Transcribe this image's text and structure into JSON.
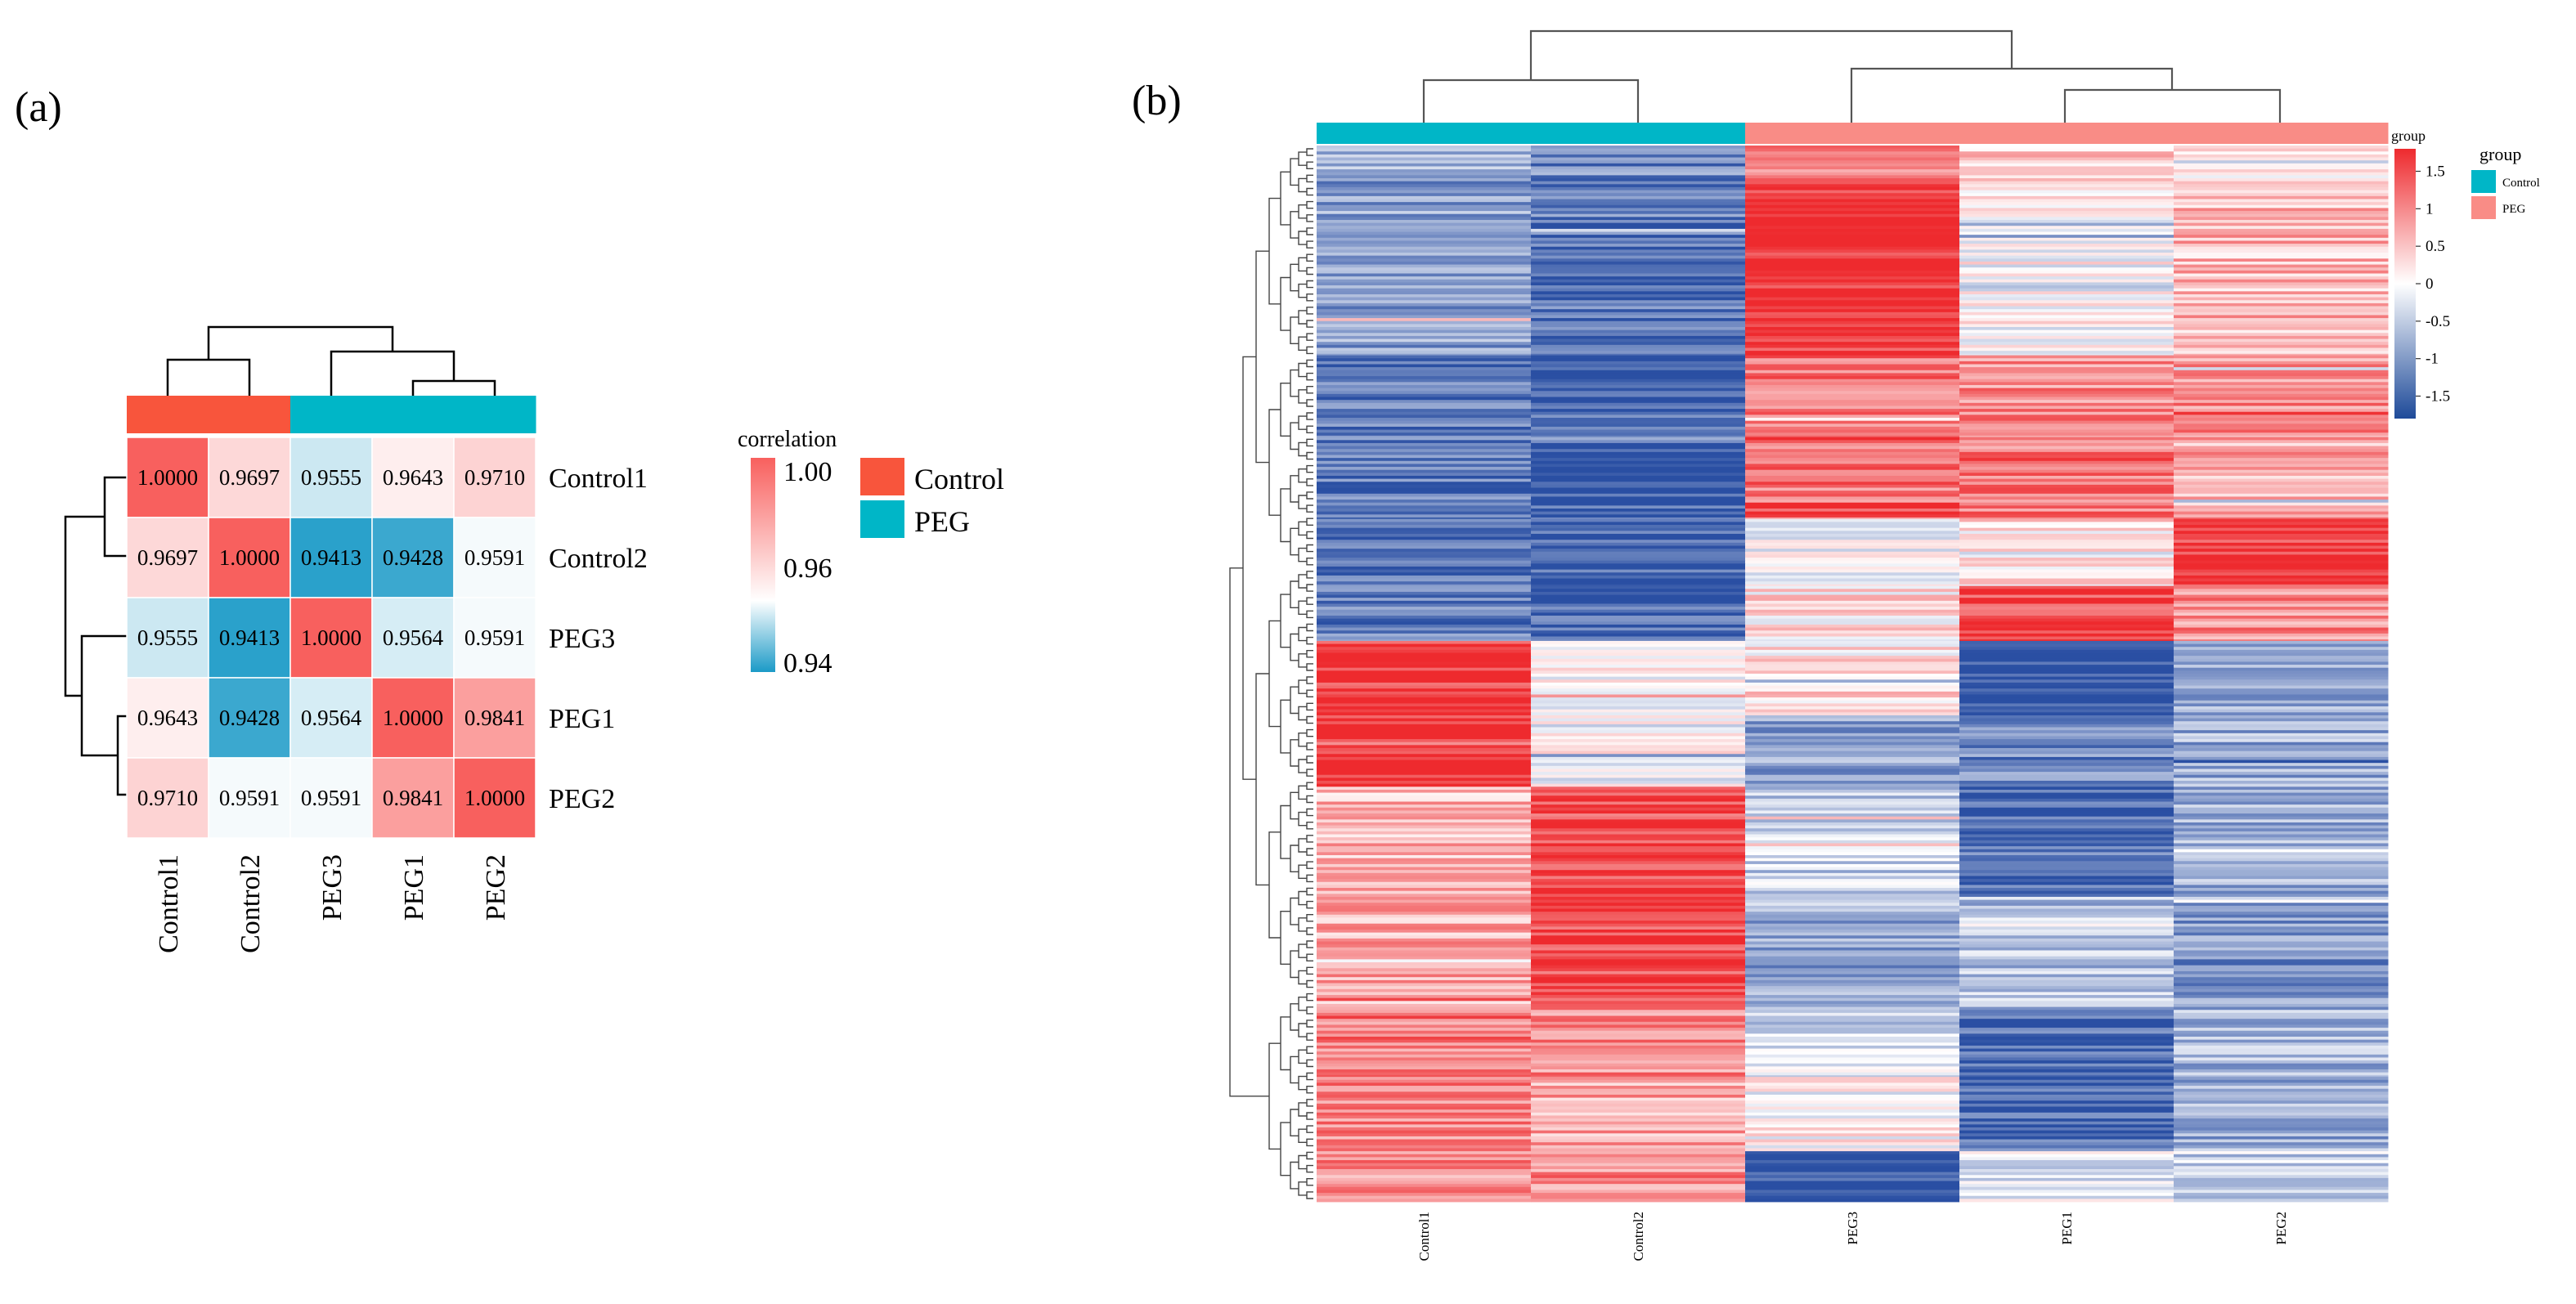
{
  "panel_a": {
    "label": "(a)",
    "legend_title": "correlation",
    "colorbar_ticks": [
      "1.00",
      "0.96",
      "0.94"
    ],
    "groups": [
      {
        "name": "Control",
        "color": "#f8553c"
      },
      {
        "name": "PEG",
        "color": "#00b6c7"
      }
    ]
  },
  "panel_b": {
    "label": "(b)",
    "colorbar_title": "group",
    "colorbar_ticks": [
      "1.5",
      "1",
      "0.5",
      "0",
      "-0.5",
      "-1",
      "-1.5"
    ],
    "legend_title": "group",
    "groups": [
      {
        "name": "Control",
        "color": "#00b6c7"
      },
      {
        "name": "PEG",
        "color": "#f98c86"
      }
    ]
  },
  "chart_data": [
    {
      "type": "heatmap",
      "title": "",
      "samples": [
        "Control1",
        "Control2",
        "PEG3",
        "PEG1",
        "PEG2"
      ],
      "sample_groups": [
        "Control",
        "Control",
        "PEG",
        "PEG",
        "PEG"
      ],
      "values": [
        [
          "1.0000",
          "0.9697",
          "0.9555",
          "0.9643",
          "0.9710"
        ],
        [
          "0.9697",
          "1.0000",
          "0.9413",
          "0.9428",
          "0.9591"
        ],
        [
          "0.9555",
          "0.9413",
          "1.0000",
          "0.9564",
          "0.9591"
        ],
        [
          "0.9643",
          "0.9428",
          "0.9564",
          "1.0000",
          "0.9841"
        ],
        [
          "0.9710",
          "0.9591",
          "0.9591",
          "0.9841",
          "1.0000"
        ]
      ],
      "color_range": [
        0.94,
        1.0
      ],
      "colors": {
        "low": "#1b9ac7",
        "mid": "#ffffff",
        "high": "#f8605e"
      }
    },
    {
      "type": "heatmap",
      "samples": [
        "Control1",
        "Control2",
        "PEG3",
        "PEG1",
        "PEG2"
      ],
      "sample_groups": [
        "Control",
        "Control",
        "PEG",
        "PEG",
        "PEG"
      ],
      "color_range": [
        -1.5,
        1.5
      ],
      "colors": {
        "low": "#2a4fa3",
        "mid": "#ffffff",
        "high": "#ee2a2e"
      },
      "row_blocks": [
        {
          "rows": 26,
          "values": [
            -0.6,
            -1.0,
            1.0,
            0.3,
            0.1
          ]
        },
        {
          "rows": 115,
          "values": [
            -0.8,
            -1.2,
            1.5,
            0.0,
            0.5
          ]
        },
        {
          "rows": 55,
          "values": [
            -1.1,
            -1.3,
            1.0,
            0.8,
            0.8
          ]
        },
        {
          "rows": 55,
          "values": [
            -1.1,
            -1.3,
            1.0,
            0.9,
            0.6
          ]
        },
        {
          "rows": 45,
          "values": [
            -1.1,
            -1.3,
            0.0,
            0.2,
            1.4
          ]
        },
        {
          "rows": 37,
          "values": [
            -1.1,
            -1.3,
            0.2,
            1.3,
            0.8
          ]
        },
        {
          "rows": 50,
          "values": [
            1.4,
            0.1,
            0.2,
            -1.5,
            -0.7
          ]
        },
        {
          "rows": 48,
          "values": [
            1.5,
            0.0,
            -0.8,
            -1.0,
            -0.7
          ]
        },
        {
          "rows": 80,
          "values": [
            0.5,
            1.3,
            -0.4,
            -1.2,
            -0.7
          ]
        },
        {
          "rows": 70,
          "values": [
            0.6,
            1.3,
            -0.8,
            -0.5,
            -0.9
          ]
        },
        {
          "rows": 45,
          "values": [
            0.9,
            0.8,
            -0.3,
            -1.3,
            -0.6
          ]
        },
        {
          "rows": 50,
          "values": [
            0.8,
            0.6,
            0.0,
            -1.3,
            -0.7
          ]
        },
        {
          "rows": 34,
          "values": [
            0.8,
            0.8,
            -1.5,
            -0.2,
            -0.4
          ]
        }
      ]
    }
  ]
}
